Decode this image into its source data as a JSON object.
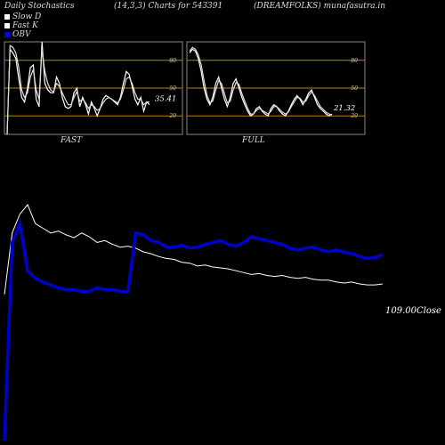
{
  "header": {
    "title": "Daily Stochastics",
    "params": "(14,3,3) Charts for 543391",
    "source": "(DREAMFOLKS) munafasutra.in"
  },
  "legend": [
    {
      "label": "Slow  D",
      "color": "#ffffff"
    },
    {
      "label": "Fast K",
      "color": "#ffffff"
    },
    {
      "label": "OBV",
      "color": "#0000ff"
    }
  ],
  "colors": {
    "obv": "#0000cc",
    "price": "#ffffff",
    "level": "#b8860b",
    "panel_border": "#888888"
  },
  "chart_data": [
    {
      "type": "line",
      "title": "FAST",
      "ylim": [
        0,
        100
      ],
      "levels": [
        80,
        50,
        20
      ],
      "tick_labels": [
        "80",
        "50",
        "20"
      ],
      "last_value_label": "35.41",
      "series": [
        {
          "values": [
            0,
            92,
            88,
            82,
            60,
            40,
            35,
            50,
            72,
            75,
            38,
            30,
            100,
            55,
            48,
            45,
            45,
            62,
            55,
            40,
            30,
            28,
            30,
            45,
            50,
            30,
            40,
            32,
            22,
            35,
            28,
            20,
            28,
            38,
            42,
            40,
            38,
            35,
            32,
            40,
            55,
            68,
            65,
            52,
            38,
            32,
            40,
            25,
            35,
            32
          ]
        },
        {
          "values": [
            0,
            96,
            94,
            88,
            72,
            48,
            40,
            45,
            62,
            70,
            48,
            38,
            92,
            68,
            55,
            48,
            46,
            55,
            52,
            45,
            38,
            32,
            32,
            40,
            46,
            36,
            38,
            34,
            28,
            32,
            30,
            26,
            28,
            34,
            38,
            40,
            38,
            36,
            34,
            38,
            48,
            60,
            62,
            55,
            45,
            38,
            38,
            32,
            35,
            35
          ]
        }
      ]
    },
    {
      "type": "line",
      "title": "FULL",
      "ylim": [
        0,
        100
      ],
      "levels": [
        80,
        50,
        20
      ],
      "tick_labels": [
        "80",
        "50",
        "20"
      ],
      "last_value_label": "21.32",
      "series": [
        {
          "values": [
            88,
            92,
            90,
            82,
            68,
            50,
            38,
            32,
            40,
            55,
            62,
            50,
            38,
            30,
            40,
            55,
            60,
            50,
            40,
            32,
            25,
            20,
            22,
            28,
            30,
            25,
            22,
            20,
            28,
            32,
            30,
            25,
            22,
            20,
            25,
            32,
            38,
            42,
            38,
            32,
            38,
            45,
            48,
            40,
            32,
            28,
            25,
            22,
            20,
            22
          ]
        },
        {
          "values": [
            90,
            94,
            92,
            86,
            75,
            58,
            42,
            34,
            36,
            48,
            58,
            55,
            44,
            34,
            36,
            48,
            56,
            54,
            44,
            36,
            28,
            22,
            22,
            26,
            28,
            26,
            24,
            22,
            25,
            30,
            30,
            27,
            24,
            22,
            24,
            30,
            35,
            40,
            39,
            35,
            36,
            42,
            46,
            42,
            36,
            30,
            27,
            24,
            22,
            21
          ]
        }
      ]
    },
    {
      "type": "line",
      "title": "",
      "last_value_label": "109.00Close",
      "series": [
        {
          "values": [
            5,
            70,
            90,
            100,
            80,
            75,
            70,
            72,
            68,
            65,
            70,
            66,
            60,
            62,
            58,
            55,
            56,
            54,
            50,
            48,
            45,
            43,
            42,
            39,
            38,
            35,
            36,
            34,
            33,
            32,
            30,
            28,
            26,
            27,
            25,
            24,
            25,
            23,
            22,
            23,
            21,
            20,
            20,
            18,
            17,
            18,
            16,
            15,
            15,
            16
          ]
        },
        {
          "values": [
            -150,
            60,
            80,
            30,
            22,
            18,
            15,
            12,
            10,
            10,
            8,
            8,
            12,
            10,
            10,
            8,
            8,
            70,
            68,
            62,
            60,
            55,
            55,
            57,
            54,
            55,
            58,
            60,
            62,
            58,
            56,
            60,
            66,
            64,
            62,
            60,
            58,
            54,
            52,
            54,
            55,
            52,
            50,
            52,
            50,
            48,
            45,
            43,
            44,
            47
          ]
        }
      ]
    }
  ]
}
